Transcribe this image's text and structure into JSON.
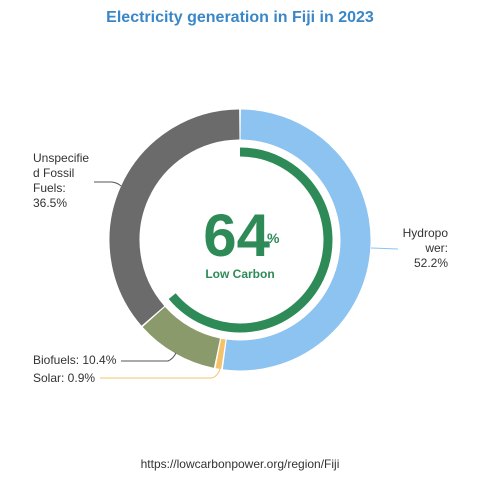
{
  "chart_data": {
    "type": "pie",
    "title": "Electricity generation in Fiji in 2023",
    "slices": [
      {
        "label": "Hydropower",
        "display_label": "Hydropo­wer: 52.2%",
        "value": 52.2,
        "color": "#8cc3f0"
      },
      {
        "label": "Solar",
        "display_label": "Solar: 0.9%",
        "value": 0.9,
        "color": "#f5c26b"
      },
      {
        "label": "Biofuels",
        "display_label": "Biofuels: 10.4%",
        "value": 10.4,
        "color": "#8a9a6b"
      },
      {
        "label": "Unspecified Fossil Fuels",
        "display_label": "Unspecifie d Fossil Fuels: 36.5%",
        "value": 36.5,
        "color": "#6b6b6b"
      }
    ],
    "center": {
      "value": "64",
      "unit": "%",
      "label": "Low Carbon",
      "fraction": 0.64,
      "color": "#2e8b57"
    }
  },
  "labels": {
    "unspecified": "Unspecifie d Fossil Fuels: 36.5%",
    "hydro": "Hydropo wer: 52.2%",
    "biofuels": "Biofuels: 10.4%",
    "solar": "Solar: 0.9%"
  },
  "source": "https://lowcarbonpower.org/region/Fiji"
}
